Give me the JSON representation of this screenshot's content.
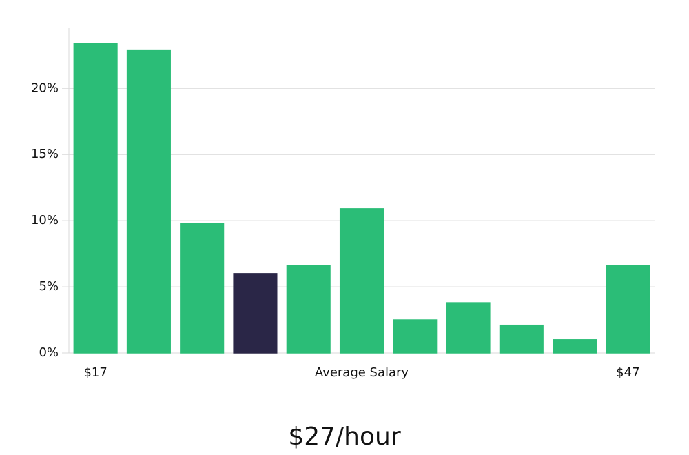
{
  "chart_data": {
    "type": "bar",
    "categories": [
      "$17",
      null,
      null,
      null,
      null,
      null,
      null,
      null,
      null,
      null,
      "$47"
    ],
    "values": [
      23.4,
      22.9,
      9.8,
      6.0,
      6.6,
      10.9,
      2.5,
      3.8,
      2.1,
      1.0,
      6.6
    ],
    "colors": [
      "#2bbd77",
      "#2bbd77",
      "#2bbd77",
      "#2a2647",
      "#2bbd77",
      "#2bbd77",
      "#2bbd77",
      "#2bbd77",
      "#2bbd77",
      "#2bbd77",
      "#2bbd77"
    ],
    "x_label": "Average Salary",
    "annotation": "$27/hour",
    "ylim": [
      0,
      24.6
    ],
    "yticks": [
      {
        "value": 0,
        "label": "0%"
      },
      {
        "value": 5,
        "label": "5%"
      },
      {
        "value": 10,
        "label": "10%"
      },
      {
        "value": 15,
        "label": "15%"
      },
      {
        "value": 20,
        "label": "20%"
      }
    ],
    "grid": true
  }
}
